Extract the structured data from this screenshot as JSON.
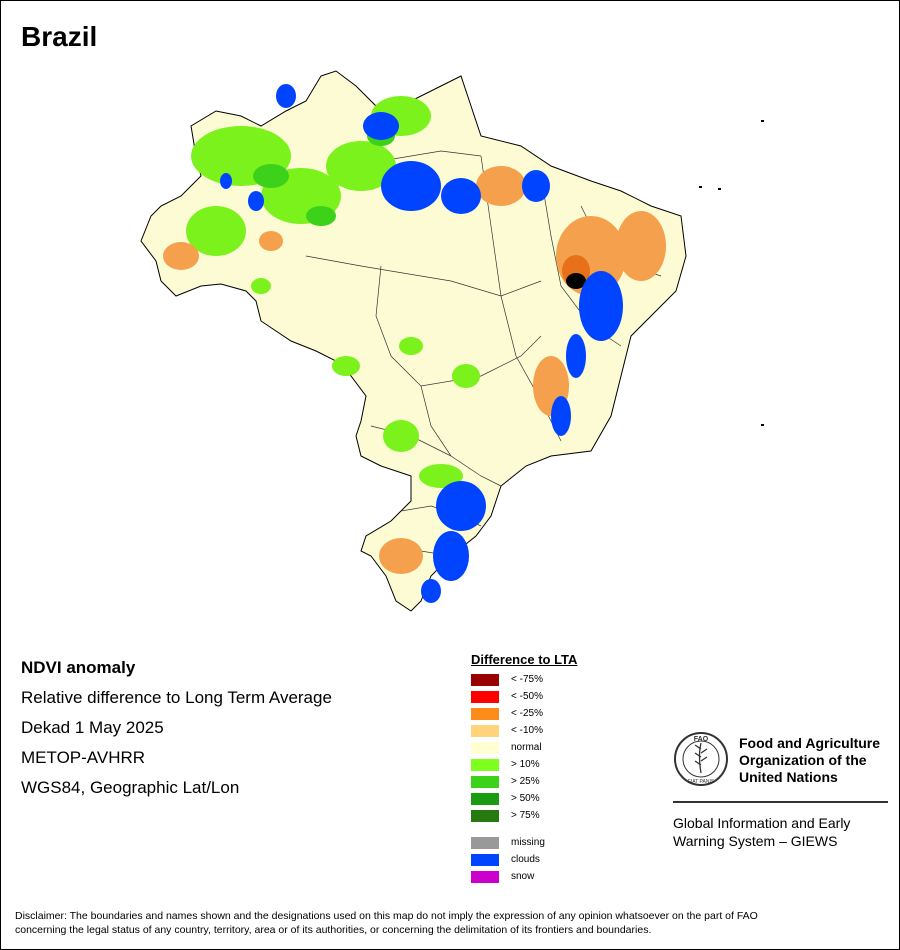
{
  "map": {
    "title": "Brazil",
    "colors": {
      "background": "#fdfbd3",
      "positive": "#7cf21d",
      "clouds": "#0044ff",
      "negative": "#f5a04c",
      "border": "#000000"
    }
  },
  "info": {
    "heading": "NDVI anomaly",
    "line1": "Relative difference to Long Term Average",
    "line2": "Dekad 1 May 2025",
    "line3": "METOP-AVHRR",
    "line4": "WGS84, Geographic Lat/Lon"
  },
  "legend": {
    "title": "Difference to LTA",
    "items": [
      {
        "label": "< -75%",
        "color": "#990000"
      },
      {
        "label": "< -50%",
        "color": "#ff0000"
      },
      {
        "label": "< -25%",
        "color": "#ff8c1a"
      },
      {
        "label": "< -10%",
        "color": "#ffd37a"
      },
      {
        "label": "normal",
        "color": "#ffffd2"
      },
      {
        "label": "> 10%",
        "color": "#7fff1e"
      },
      {
        "label": "> 25%",
        "color": "#3cd219"
      },
      {
        "label": "> 50%",
        "color": "#1a9b12"
      },
      {
        "label": "> 75%",
        "color": "#267a10"
      }
    ],
    "extra": [
      {
        "label": "missing",
        "color": "#999999"
      },
      {
        "label": "clouds",
        "color": "#0044ff"
      },
      {
        "label": "snow",
        "color": "#cc00cc"
      }
    ]
  },
  "fao": {
    "logo_text": "FAO",
    "logo_motto": "FIAT PANIS",
    "name_line1": "Food and Agriculture",
    "name_line2": "Organization of the",
    "name_line3": "United Nations",
    "sub_line1": "Global Information and Early",
    "sub_line2": "Warning System – GIEWS"
  },
  "disclaimer": {
    "line1": "Disclaimer: The boundaries and names shown and the designations used on this map do not imply the expression of any opinion whatsoever on the part of FAO",
    "line2": "concerning the legal status of any country, territory, area or of its authorities, or concerning the delimitation of its frontiers and boundaries."
  }
}
